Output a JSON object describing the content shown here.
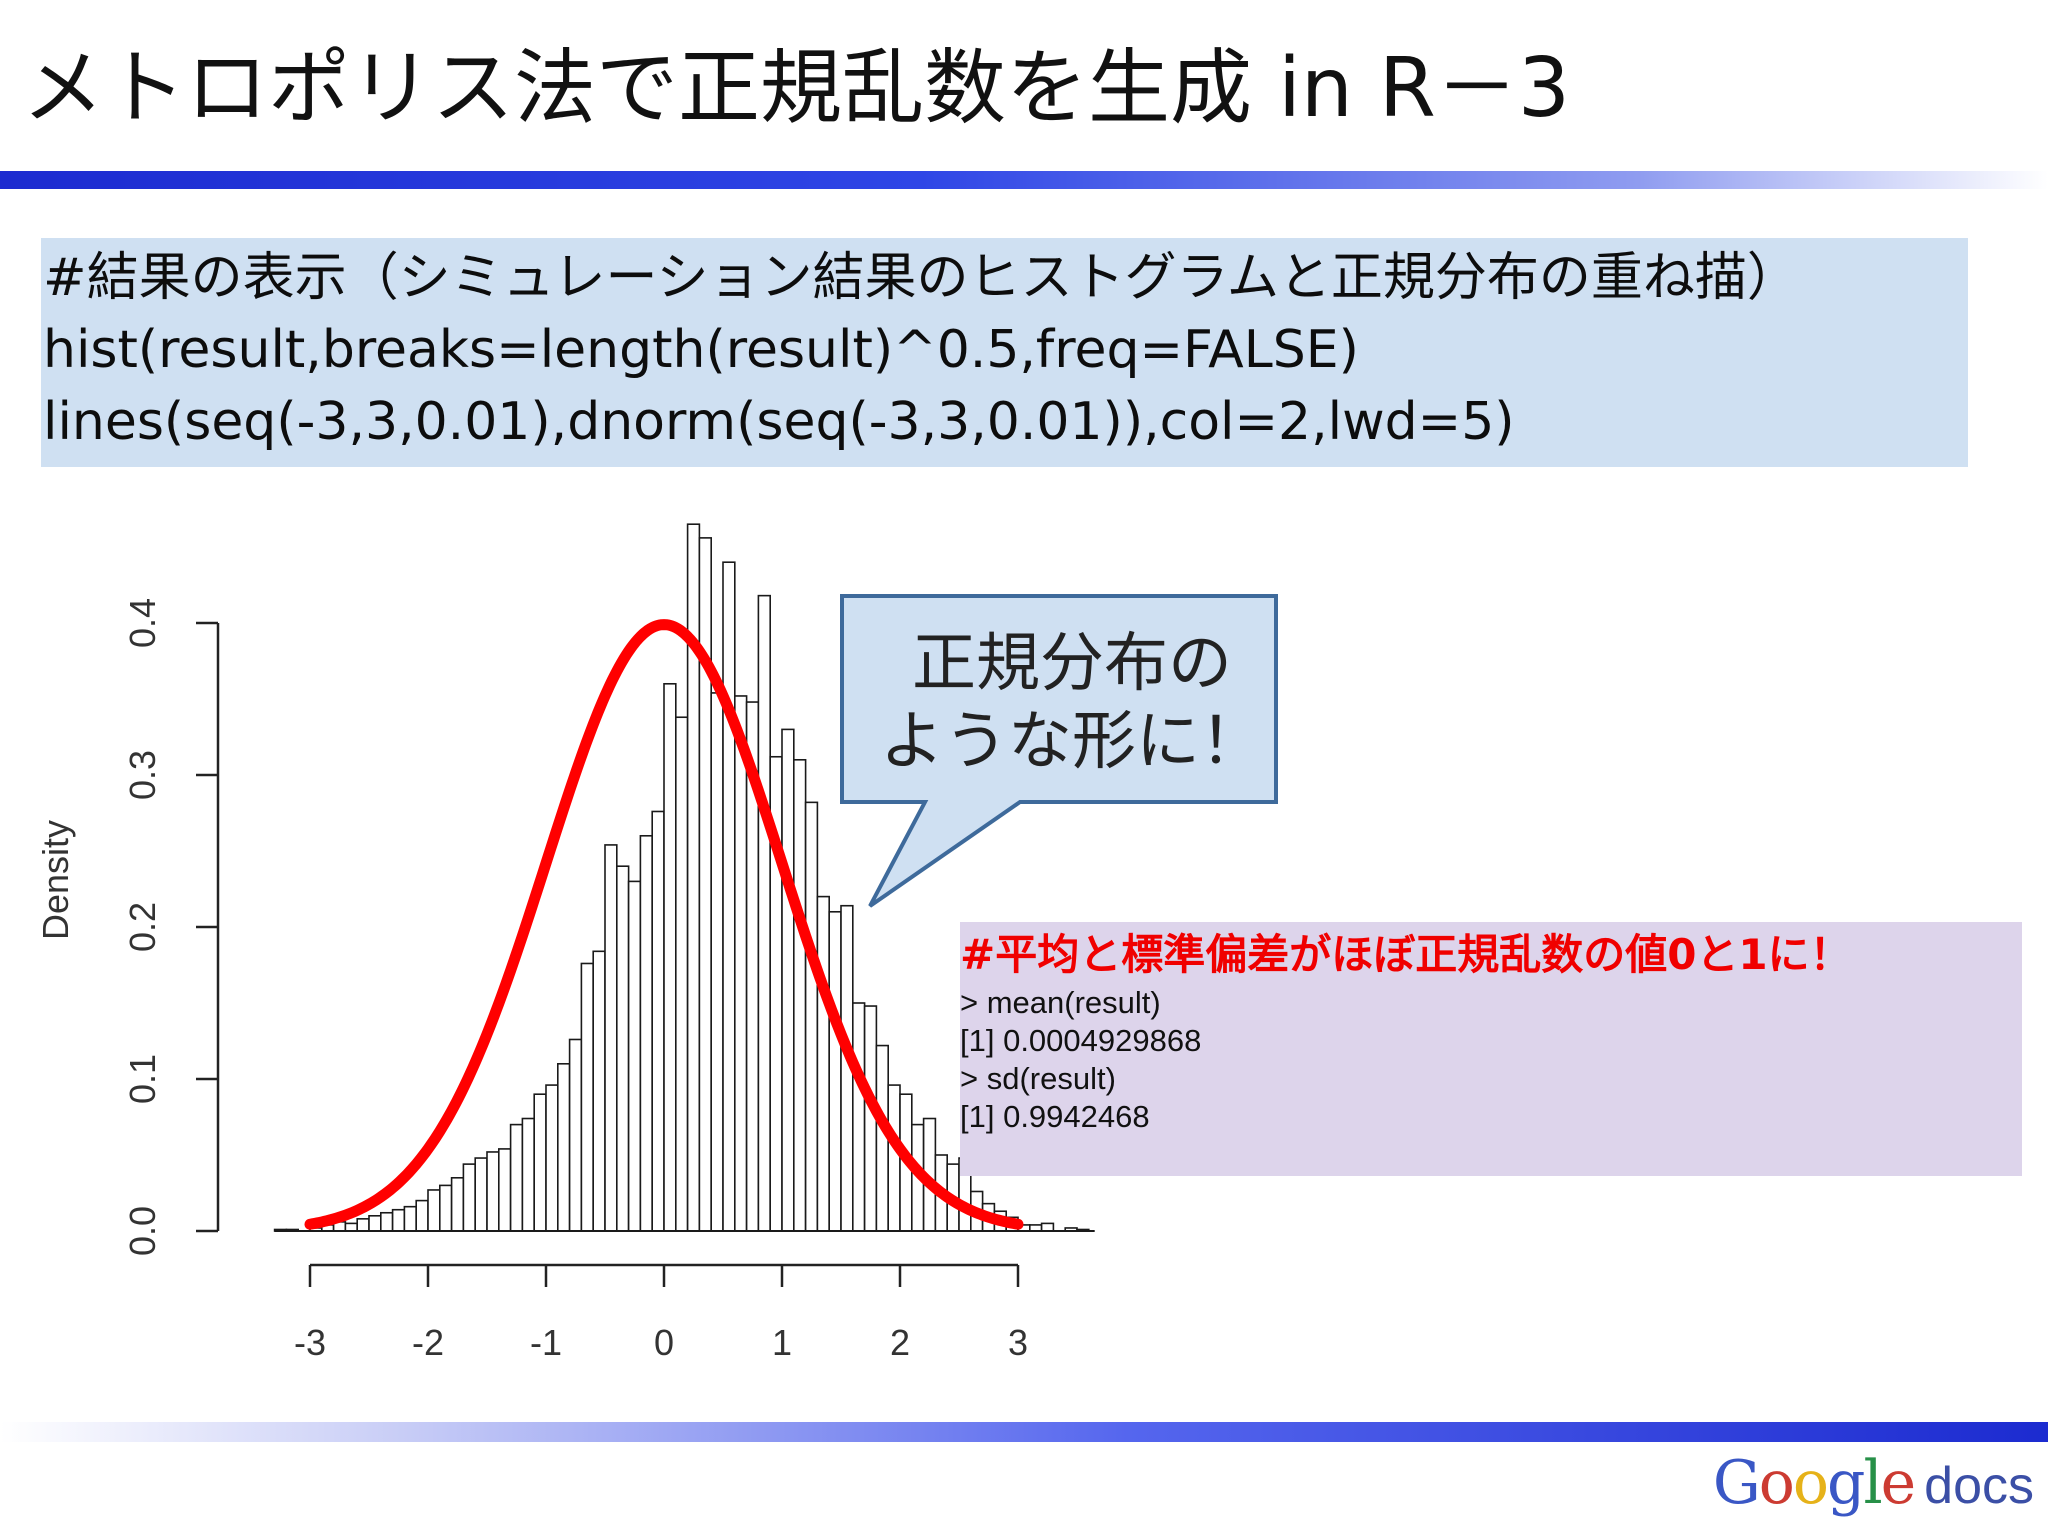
{
  "slide": {
    "title": "メトロポリス法で正規乱数を生成 in R－3"
  },
  "code_box": {
    "lines": [
      "#結果の表示（シミュレーション結果のヒストグラムと正規分布の重ね描）",
      "hist(result,breaks=length(result)^0.5,freq=FALSE)",
      "lines(seq(-3,3,0.01),dnorm(seq(-3,3,0.01)),col=2,lwd=5)"
    ]
  },
  "callout": {
    "lines": [
      "正規分布の",
      "ような形に！"
    ]
  },
  "console": {
    "heading": "#平均と標準偏差がほぼ正規乱数の値0と1に！",
    "lines": [
      "> mean(result)",
      "[1] 0.0004929868",
      "> sd(result)",
      "[1] 0.9942468"
    ]
  },
  "logo": {
    "google_letters": [
      "G",
      "o",
      "o",
      "g",
      "l",
      "e"
    ],
    "google_colors": [
      "#3a57c5",
      "#cc3b32",
      "#e6b219",
      "#3a57c5",
      "#279048",
      "#cc3b32"
    ],
    "docs": "docs"
  },
  "chart_data": {
    "type": "bar",
    "title": "",
    "xlabel": "",
    "ylabel": "Density",
    "xlim": [
      -3.5,
      3.7
    ],
    "ylim": [
      0,
      0.46
    ],
    "x_ticks": [
      -3,
      -2,
      -1,
      0,
      1,
      2,
      3
    ],
    "x_tick_labels": [
      "-3",
      "-2",
      "-1",
      "0",
      "1",
      "2",
      "3"
    ],
    "y_ticks": [
      0.0,
      0.1,
      0.2,
      0.3,
      0.4
    ],
    "y_tick_labels": [
      "0.0",
      "0.1",
      "0.2",
      "0.3",
      "0.4"
    ],
    "histogram": {
      "bin_width": 0.1,
      "bin_start": -3.3,
      "densities": [
        0.001,
        0.001,
        0.0,
        0.002,
        0.004,
        0.006,
        0.005,
        0.008,
        0.01,
        0.012,
        0.014,
        0.016,
        0.02,
        0.027,
        0.03,
        0.035,
        0.044,
        0.048,
        0.052,
        0.054,
        0.07,
        0.074,
        0.09,
        0.096,
        0.11,
        0.126,
        0.176,
        0.184,
        0.254,
        0.24,
        0.23,
        0.26,
        0.276,
        0.36,
        0.338,
        0.465,
        0.456,
        0.354,
        0.44,
        0.352,
        0.348,
        0.418,
        0.312,
        0.33,
        0.31,
        0.282,
        0.22,
        0.21,
        0.214,
        0.15,
        0.148,
        0.122,
        0.096,
        0.09,
        0.07,
        0.074,
        0.05,
        0.044,
        0.048,
        0.026,
        0.018,
        0.013,
        0.009,
        0.004,
        0.004,
        0.005,
        0.0,
        0.002,
        0.001,
        0.0
      ]
    },
    "series": [
      {
        "name": "dnorm(seq(-3,3,0.01))",
        "type": "line",
        "color": "#ff0000",
        "x_range": [
          -3,
          3
        ],
        "step": 0.01,
        "function": "dnorm"
      }
    ],
    "grid": false,
    "legend": "none"
  }
}
